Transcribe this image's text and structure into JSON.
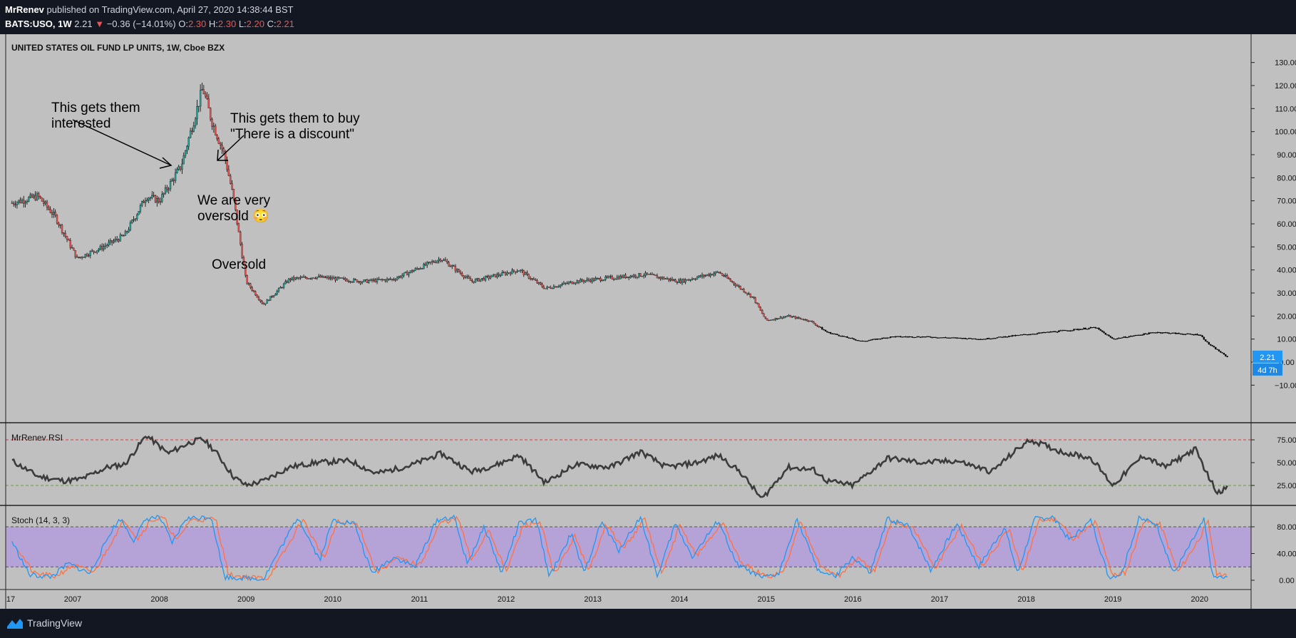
{
  "header": {
    "author": "MrRenev",
    "published": "published on TradingView.com, April 27, 2020 14:38:44 BST",
    "symbol": "BATS:USO, 1W",
    "last": "2.21",
    "change": "−0.36 (−14.01%)",
    "o_label": "O:",
    "o_value": "2.30",
    "h_label": "H:",
    "h_value": "2.30",
    "l_label": "L:",
    "l_value": "2.20",
    "c_label": "C:",
    "c_value": "2.21"
  },
  "chart_title": "UNITED STATES OIL FUND LP UNITS, 1W, Cboe BZX",
  "price_tag": "2.21",
  "countdown_tag": "4d 7h",
  "annotations": [
    "This gets them\ninterested",
    "This gets them to buy\n\"There is a discount\"",
    "We are very\noversold 😳",
    "Oversold"
  ],
  "footer": {
    "brand": "TradingView"
  },
  "colors": {
    "background": "#c0c0c0",
    "frame": "#131722",
    "candle_up": "#26a69a",
    "candle_down": "#ef5350",
    "rsi_line": "#3c3c3c",
    "stoch_k": "#2196f3",
    "stoch_d": "#ff7043",
    "stoch_band": "#b39ddb"
  },
  "chart_data": [
    {
      "type": "candlestick",
      "title": "UNITED STATES OIL FUND LP UNITS, 1W, Cboe BZX",
      "x_ticks": [
        "17",
        "2007",
        "2008",
        "2009",
        "2010",
        "2011",
        "2012",
        "2013",
        "2014",
        "2015",
        "2016",
        "2017",
        "2018",
        "2019",
        "2020"
      ],
      "y_ticks": [
        "130.00",
        "120.00",
        "110.00",
        "100.00",
        "90.00",
        "80.00",
        "70.00",
        "60.00",
        "50.00",
        "40.00",
        "30.00",
        "20.00",
        "10.00",
        "0.00",
        "−10.00"
      ],
      "ylim": [
        -10,
        135
      ],
      "close_path": [
        [
          2006.3,
          69
        ],
        [
          2006.6,
          72
        ],
        [
          2006.8,
          63
        ],
        [
          2007.05,
          45
        ],
        [
          2007.35,
          50
        ],
        [
          2007.6,
          55
        ],
        [
          2007.85,
          72
        ],
        [
          2008.0,
          70
        ],
        [
          2008.25,
          85
        ],
        [
          2008.5,
          119
        ],
        [
          2008.6,
          105
        ],
        [
          2008.75,
          90
        ],
        [
          2008.85,
          72
        ],
        [
          2009.0,
          35
        ],
        [
          2009.2,
          25
        ],
        [
          2009.5,
          36
        ],
        [
          2009.8,
          37
        ],
        [
          2010.35,
          35
        ],
        [
          2010.7,
          36
        ],
        [
          2011.25,
          45
        ],
        [
          2011.6,
          35
        ],
        [
          2012.15,
          40
        ],
        [
          2012.45,
          32
        ],
        [
          2012.8,
          35
        ],
        [
          2013.6,
          38
        ],
        [
          2014.0,
          35
        ],
        [
          2014.45,
          39
        ],
        [
          2014.6,
          35
        ],
        [
          2014.85,
          28
        ],
        [
          2015.0,
          18
        ],
        [
          2015.25,
          20
        ],
        [
          2015.5,
          18
        ],
        [
          2015.7,
          13
        ],
        [
          2016.1,
          9
        ],
        [
          2016.45,
          11
        ],
        [
          2016.8,
          11
        ],
        [
          2017.5,
          10
        ],
        [
          2018.0,
          12
        ],
        [
          2018.8,
          15
        ],
        [
          2019.0,
          10
        ],
        [
          2019.5,
          13
        ],
        [
          2019.9,
          12
        ],
        [
          2020.0,
          12
        ],
        [
          2020.1,
          8
        ],
        [
          2020.32,
          2.21
        ]
      ],
      "last_value": 2.21
    },
    {
      "type": "line",
      "name": "MrRenev RSI",
      "y_ticks": [
        "75.00",
        "50.00",
        "25.00"
      ],
      "ylim": [
        0,
        100
      ],
      "overbought": 75,
      "oversold": 25,
      "points": [
        [
          2006.3,
          52
        ],
        [
          2006.6,
          35
        ],
        [
          2006.9,
          30
        ],
        [
          2007.1,
          32
        ],
        [
          2007.4,
          45
        ],
        [
          2007.6,
          48
        ],
        [
          2007.85,
          80
        ],
        [
          2008.1,
          60
        ],
        [
          2008.35,
          72
        ],
        [
          2008.5,
          76
        ],
        [
          2008.65,
          62
        ],
        [
          2008.85,
          35
        ],
        [
          2009.0,
          25
        ],
        [
          2009.2,
          30
        ],
        [
          2009.5,
          45
        ],
        [
          2009.8,
          50
        ],
        [
          2010.2,
          52
        ],
        [
          2010.5,
          38
        ],
        [
          2010.9,
          47
        ],
        [
          2011.25,
          60
        ],
        [
          2011.6,
          40
        ],
        [
          2011.9,
          48
        ],
        [
          2012.15,
          58
        ],
        [
          2012.45,
          28
        ],
        [
          2012.8,
          48
        ],
        [
          2013.2,
          45
        ],
        [
          2013.55,
          62
        ],
        [
          2013.85,
          45
        ],
        [
          2014.2,
          50
        ],
        [
          2014.45,
          58
        ],
        [
          2014.7,
          40
        ],
        [
          2014.95,
          10
        ],
        [
          2015.25,
          45
        ],
        [
          2015.55,
          42
        ],
        [
          2015.7,
          30
        ],
        [
          2016.0,
          25
        ],
        [
          2016.4,
          55
        ],
        [
          2016.8,
          50
        ],
        [
          2017.2,
          52
        ],
        [
          2017.6,
          40
        ],
        [
          2017.9,
          65
        ],
        [
          2018.05,
          75
        ],
        [
          2018.4,
          62
        ],
        [
          2018.75,
          55
        ],
        [
          2019.0,
          25
        ],
        [
          2019.35,
          58
        ],
        [
          2019.6,
          45
        ],
        [
          2019.95,
          65
        ],
        [
          2020.1,
          35
        ],
        [
          2020.2,
          18
        ],
        [
          2020.32,
          22
        ]
      ]
    },
    {
      "type": "line",
      "name": "Stoch (14, 3, 3)",
      "y_ticks": [
        "80.00",
        "40.00",
        "0.00"
      ],
      "ylim": [
        -10,
        100
      ],
      "band": [
        20,
        80
      ],
      "series": [
        {
          "values": [
            [
              2006.3,
              58
            ],
            [
              2006.5,
              8
            ],
            [
              2006.75,
              5
            ],
            [
              2006.95,
              25
            ],
            [
              2007.2,
              10
            ],
            [
              2007.45,
              75
            ],
            [
              2007.55,
              92
            ],
            [
              2007.7,
              60
            ],
            [
              2007.85,
              92
            ],
            [
              2008.0,
              95
            ],
            [
              2008.15,
              55
            ],
            [
              2008.3,
              92
            ],
            [
              2008.6,
              95
            ],
            [
              2008.75,
              5
            ],
            [
              2009.0,
              3
            ],
            [
              2009.2,
              2
            ],
            [
              2009.45,
              60
            ],
            [
              2009.6,
              95
            ],
            [
              2009.85,
              30
            ],
            [
              2010.0,
              90
            ],
            [
              2010.25,
              85
            ],
            [
              2010.45,
              10
            ],
            [
              2010.7,
              35
            ],
            [
              2010.95,
              20
            ],
            [
              2011.2,
              90
            ],
            [
              2011.4,
              95
            ],
            [
              2011.55,
              25
            ],
            [
              2011.75,
              80
            ],
            [
              2011.95,
              10
            ],
            [
              2012.15,
              85
            ],
            [
              2012.35,
              90
            ],
            [
              2012.5,
              5
            ],
            [
              2012.75,
              70
            ],
            [
              2012.9,
              10
            ],
            [
              2013.1,
              88
            ],
            [
              2013.3,
              45
            ],
            [
              2013.55,
              95
            ],
            [
              2013.75,
              5
            ],
            [
              2013.95,
              85
            ],
            [
              2014.15,
              35
            ],
            [
              2014.45,
              90
            ],
            [
              2014.65,
              25
            ],
            [
              2014.95,
              3
            ],
            [
              2015.15,
              10
            ],
            [
              2015.35,
              92
            ],
            [
              2015.6,
              15
            ],
            [
              2015.8,
              5
            ],
            [
              2016.0,
              35
            ],
            [
              2016.2,
              10
            ],
            [
              2016.4,
              92
            ],
            [
              2016.65,
              80
            ],
            [
              2016.9,
              15
            ],
            [
              2017.2,
              85
            ],
            [
              2017.45,
              20
            ],
            [
              2017.75,
              80
            ],
            [
              2017.9,
              10
            ],
            [
              2018.1,
              92
            ],
            [
              2018.3,
              95
            ],
            [
              2018.5,
              60
            ],
            [
              2018.75,
              90
            ],
            [
              2018.95,
              5
            ],
            [
              2019.1,
              10
            ],
            [
              2019.3,
              92
            ],
            [
              2019.5,
              85
            ],
            [
              2019.7,
              10
            ],
            [
              2019.9,
              55
            ],
            [
              2020.05,
              90
            ],
            [
              2020.15,
              5
            ],
            [
              2020.32,
              3
            ]
          ]
        },
        {
          "values": [
            [
              2006.35,
              50
            ],
            [
              2006.55,
              10
            ],
            [
              2006.8,
              6
            ],
            [
              2007.0,
              22
            ],
            [
              2007.25,
              12
            ],
            [
              2007.5,
              70
            ],
            [
              2007.6,
              90
            ],
            [
              2007.75,
              62
            ],
            [
              2007.9,
              90
            ],
            [
              2008.05,
              93
            ],
            [
              2008.2,
              58
            ],
            [
              2008.35,
              90
            ],
            [
              2008.65,
              92
            ],
            [
              2008.8,
              8
            ],
            [
              2009.05,
              4
            ],
            [
              2009.25,
              3
            ],
            [
              2009.5,
              55
            ],
            [
              2009.65,
              92
            ],
            [
              2009.9,
              32
            ],
            [
              2010.05,
              87
            ],
            [
              2010.3,
              83
            ],
            [
              2010.5,
              12
            ],
            [
              2010.75,
              33
            ],
            [
              2011.0,
              22
            ],
            [
              2011.25,
              87
            ],
            [
              2011.45,
              92
            ],
            [
              2011.6,
              28
            ],
            [
              2011.8,
              77
            ],
            [
              2012.0,
              12
            ],
            [
              2012.2,
              82
            ],
            [
              2012.4,
              87
            ],
            [
              2012.55,
              8
            ],
            [
              2012.8,
              67
            ],
            [
              2012.95,
              12
            ],
            [
              2013.15,
              85
            ],
            [
              2013.35,
              47
            ],
            [
              2013.6,
              92
            ],
            [
              2013.8,
              8
            ],
            [
              2014.0,
              82
            ],
            [
              2014.2,
              37
            ],
            [
              2014.5,
              87
            ],
            [
              2014.7,
              27
            ],
            [
              2015.0,
              5
            ],
            [
              2015.2,
              12
            ],
            [
              2015.4,
              89
            ],
            [
              2015.65,
              17
            ],
            [
              2015.85,
              7
            ],
            [
              2016.05,
              33
            ],
            [
              2016.25,
              12
            ],
            [
              2016.45,
              89
            ],
            [
              2016.7,
              78
            ],
            [
              2016.95,
              17
            ],
            [
              2017.25,
              82
            ],
            [
              2017.5,
              22
            ],
            [
              2017.8,
              77
            ],
            [
              2017.95,
              12
            ],
            [
              2018.15,
              89
            ],
            [
              2018.35,
              92
            ],
            [
              2018.55,
              62
            ],
            [
              2018.8,
              87
            ],
            [
              2019.0,
              7
            ],
            [
              2019.15,
              12
            ],
            [
              2019.35,
              89
            ],
            [
              2019.55,
              83
            ],
            [
              2019.75,
              12
            ],
            [
              2019.95,
              53
            ],
            [
              2020.1,
              87
            ],
            [
              2020.2,
              8
            ],
            [
              2020.32,
              6
            ]
          ]
        }
      ]
    }
  ]
}
